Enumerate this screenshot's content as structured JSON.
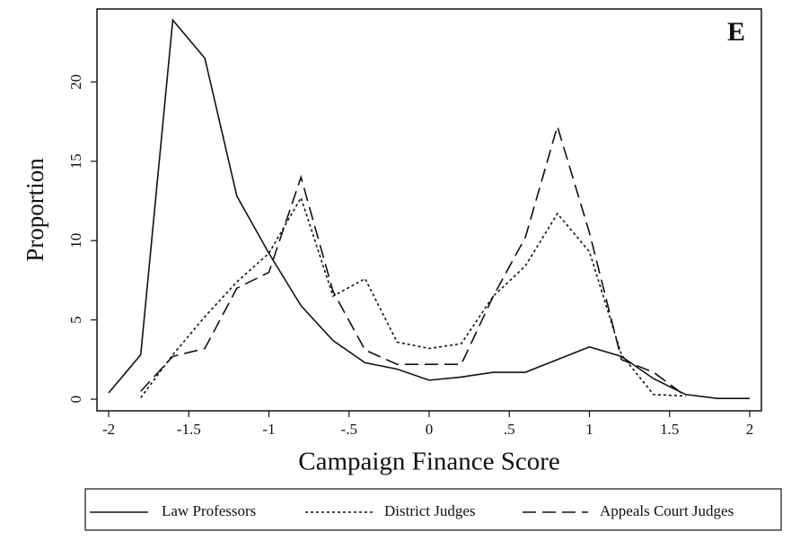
{
  "chart_data": {
    "type": "line",
    "annotation": "E",
    "x_label": "Campaign Finance Score",
    "y_label": "Proportion",
    "x": [
      -2,
      -1.8,
      -1.6,
      -1.4,
      -1.2,
      -1.0,
      -0.8,
      -0.6,
      -0.4,
      -0.2,
      0,
      0.2,
      0.4,
      0.6,
      0.8,
      1.0,
      1.2,
      1.4,
      1.6,
      1.8,
      2.0
    ],
    "series": [
      {
        "name": "Law Professors",
        "color": "#111111",
        "linestyle": "solid",
        "values": [
          0.4,
          2.8,
          23.9,
          21.5,
          12.8,
          9.2,
          5.9,
          3.7,
          2.3,
          1.9,
          1.2,
          1.4,
          1.7,
          1.7,
          2.5,
          3.3,
          2.7,
          1.3,
          0.3,
          0.05,
          0.05
        ]
      },
      {
        "name": "District Judges",
        "color": "#111111",
        "linestyle": "dotted",
        "values": [
          null,
          0.1,
          2.8,
          5.2,
          7.4,
          9.2,
          12.7,
          6.5,
          7.6,
          3.6,
          3.2,
          3.5,
          6.5,
          8.4,
          11.7,
          9.3,
          2.8,
          0.3,
          0.2,
          null,
          null
        ]
      },
      {
        "name": "Appeals Court Judges",
        "color": "#111111",
        "linestyle": "dashed",
        "values": [
          null,
          0.5,
          2.7,
          3.2,
          7.0,
          8.0,
          14.0,
          6.8,
          3.1,
          2.2,
          2.2,
          2.2,
          6.5,
          10.2,
          17.2,
          10.5,
          2.5,
          1.7,
          0.2,
          null,
          null
        ]
      }
    ],
    "xlim": [
      -2.073,
      2.073
    ],
    "ylim": [
      -0.73,
      24.6
    ],
    "xticks": [
      -2,
      {
        "value": -1.5,
        "label": "-1.5"
      },
      -1,
      {
        "value": -0.5,
        "label": "-.5"
      },
      0,
      {
        "value": 0.5,
        "label": ".5"
      },
      1,
      1.5,
      2
    ],
    "yticks": [
      0,
      5,
      10,
      15,
      20
    ],
    "legend": "bottom"
  }
}
